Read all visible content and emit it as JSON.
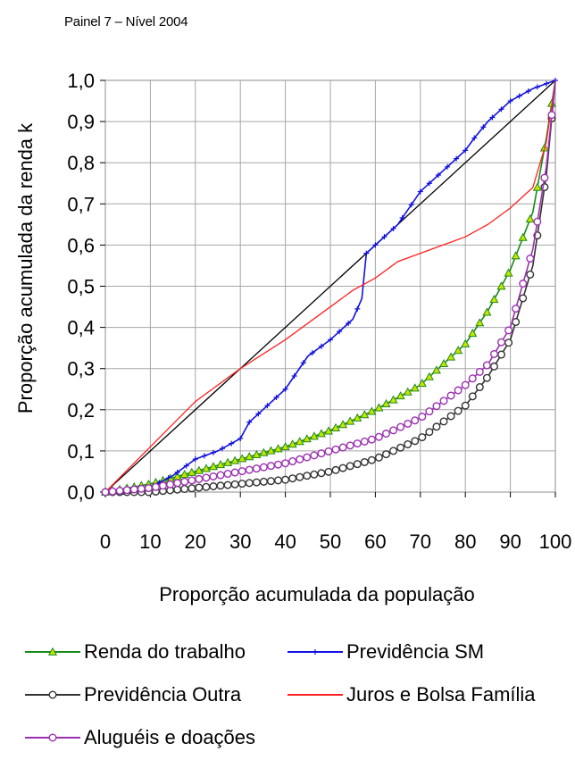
{
  "panel_title": "Painel 7 – Nível 2004",
  "chart_data": {
    "type": "line",
    "title": "Painel 7 – Nível 2004",
    "xlabel": "Proporção acumulada da população",
    "ylabel": "Proporção acumulada da renda k",
    "xlim": [
      0,
      100
    ],
    "ylim": [
      0,
      1
    ],
    "x_ticks": [
      0,
      10,
      20,
      30,
      40,
      50,
      60,
      70,
      80,
      90,
      100
    ],
    "x_tick_labels": [
      "0",
      "10",
      "20",
      "30",
      "40",
      "50",
      "60",
      "70",
      "80",
      "90",
      "100"
    ],
    "y_ticks": [
      0,
      0.1,
      0.2,
      0.3,
      0.4,
      0.5,
      0.6,
      0.7,
      0.8,
      0.9,
      1.0
    ],
    "y_tick_labels": [
      "0,0",
      "0,1",
      "0,2",
      "0,3",
      "0,4",
      "0,5",
      "0,6",
      "0,7",
      "0,8",
      "0,9",
      "1,0"
    ],
    "grid": true,
    "legend_position": "bottom",
    "equality_line": {
      "x": [
        0,
        100
      ],
      "y": [
        0,
        1
      ],
      "color": "#000000"
    },
    "series": [
      {
        "name": "Renda do trabalho",
        "color": "#1a8a1a",
        "marker": "triangle",
        "x": [
          0,
          10,
          20,
          30,
          40,
          50,
          60,
          70,
          80,
          85,
          90,
          95,
          98,
          100
        ],
        "y": [
          0,
          0.02,
          0.05,
          0.08,
          0.11,
          0.15,
          0.2,
          0.26,
          0.36,
          0.44,
          0.54,
          0.68,
          0.86,
          1.0
        ]
      },
      {
        "name": "Previdência SM",
        "color": "#1010e0",
        "marker": "plus",
        "x": [
          0,
          8,
          15,
          20,
          25,
          30,
          32,
          35,
          40,
          45,
          50,
          55,
          57,
          58,
          60,
          65,
          70,
          75,
          80,
          82,
          85,
          90,
          95,
          100
        ],
        "y": [
          0,
          0.0,
          0.04,
          0.08,
          0.1,
          0.13,
          0.17,
          0.2,
          0.25,
          0.33,
          0.37,
          0.42,
          0.47,
          0.58,
          0.6,
          0.65,
          0.73,
          0.78,
          0.83,
          0.86,
          0.9,
          0.95,
          0.98,
          1.0
        ]
      },
      {
        "name": "Previdência Outra",
        "color": "#333333",
        "marker": "circle",
        "x": [
          0,
          10,
          20,
          30,
          40,
          50,
          60,
          70,
          80,
          85,
          90,
          95,
          98,
          100
        ],
        "y": [
          0,
          0.0,
          0.01,
          0.02,
          0.03,
          0.05,
          0.08,
          0.13,
          0.21,
          0.28,
          0.37,
          0.55,
          0.77,
          1.0
        ]
      },
      {
        "name": "Juros e Bolsa Família",
        "color": "#ff2020",
        "marker": "none",
        "x": [
          0,
          10,
          20,
          30,
          40,
          50,
          55,
          60,
          65,
          70,
          75,
          80,
          85,
          90,
          95,
          98,
          100
        ],
        "y": [
          0,
          0.11,
          0.22,
          0.3,
          0.37,
          0.45,
          0.49,
          0.52,
          0.56,
          0.58,
          0.6,
          0.62,
          0.65,
          0.69,
          0.74,
          0.85,
          1.0
        ]
      },
      {
        "name": "Aluguéis e doações",
        "color": "#9b30b0",
        "marker": "circle",
        "x": [
          0,
          10,
          20,
          30,
          40,
          50,
          60,
          70,
          80,
          85,
          90,
          95,
          98,
          100
        ],
        "y": [
          0,
          0.01,
          0.03,
          0.05,
          0.07,
          0.1,
          0.13,
          0.18,
          0.26,
          0.31,
          0.4,
          0.59,
          0.79,
          1.0
        ]
      }
    ]
  }
}
